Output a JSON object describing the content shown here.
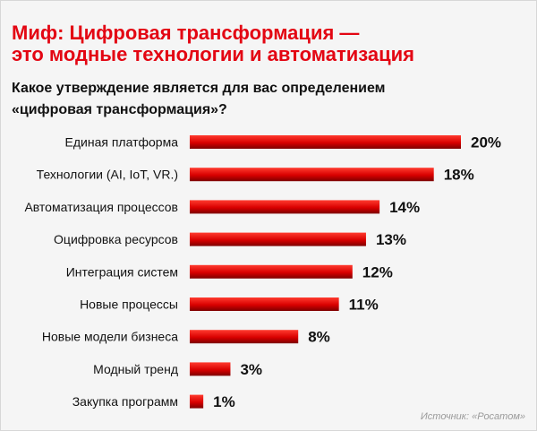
{
  "title": {
    "line1": "Миф: Цифровая трансформация —",
    "line2": "это модные технологии и автоматизация"
  },
  "subtitle": {
    "line1": "Какое утверждение является для вас определением",
    "line2": "«цифровая трансформация»?"
  },
  "source": "Источник: «Росатом»",
  "colors": {
    "title": "#e30613",
    "bar_dark": "#7d0000",
    "bar_light": "#ff3b2f",
    "text": "#111111",
    "source": "#9a9a9a"
  },
  "chart_data": {
    "type": "bar",
    "orientation": "horizontal",
    "categories": [
      "Единая платформа",
      "Технологии (AI, IoT, VR.)",
      "Автоматизация процессов",
      "Оцифровка ресурсов",
      "Интеграция систем",
      "Новые процессы",
      "Новые модели бизнеса",
      "Модный тренд",
      "Закупка программ"
    ],
    "values": [
      20,
      18,
      14,
      13,
      12,
      11,
      8,
      3,
      1
    ],
    "value_labels": [
      "20%",
      "18%",
      "14%",
      "13%",
      "12%",
      "11%",
      "8%",
      "3%",
      "1%"
    ],
    "title": "Какое утверждение является для вас определением «цифровая трансформация»?",
    "xlabel": "",
    "ylabel": "",
    "xlim": [
      0,
      20
    ],
    "grid": false,
    "legend": "none"
  }
}
